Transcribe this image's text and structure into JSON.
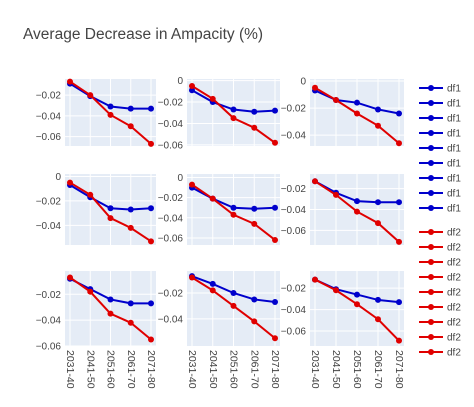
{
  "chart_data": {
    "type": "line",
    "title": "Average Decrease in Ampacity (%)",
    "categories": [
      "2031-40",
      "2041-50",
      "2051-60",
      "2061-70",
      "2071-80"
    ],
    "series_colors": {
      "df1": "#0000cc",
      "df2": "#e00000"
    },
    "plot_bgcolor": "#e5ecf6",
    "grid": true,
    "legend": {
      "placement": "right",
      "entries": [
        "df1",
        "df1",
        "df1",
        "df1",
        "df1",
        "df1",
        "df1",
        "df1",
        "df1",
        "df2",
        "df2",
        "df2",
        "df2",
        "df2",
        "df2",
        "df2",
        "df2",
        "df2"
      ]
    },
    "panels": [
      {
        "yticks": [
          -0.02,
          -0.04,
          -0.06
        ],
        "ytick_labels": [
          "−0.02",
          "−0.04",
          "−0.06"
        ],
        "ylim": [
          -0.069,
          -0.0045
        ],
        "series": [
          {
            "name": "df1",
            "values": [
              -0.009,
              -0.021,
              -0.031,
              -0.033,
              -0.033
            ]
          },
          {
            "name": "df2",
            "values": [
              -0.007,
              -0.02,
              -0.039,
              -0.05,
              -0.067
            ]
          }
        ]
      },
      {
        "yticks": [
          0,
          -0.02,
          -0.04,
          -0.06
        ],
        "ytick_labels": [
          "0",
          "−0.02",
          "−0.04",
          "−0.06"
        ],
        "ylim": [
          -0.061,
          0.0015
        ],
        "series": [
          {
            "name": "df1",
            "values": [
              -0.009,
              -0.02,
              -0.027,
              -0.029,
              -0.028
            ]
          },
          {
            "name": "df2",
            "values": [
              -0.005,
              -0.017,
              -0.035,
              -0.044,
              -0.058
            ]
          }
        ]
      },
      {
        "yticks": [
          0,
          -0.02,
          -0.04
        ],
        "ytick_labels": [
          "0",
          "−0.02",
          "−0.04"
        ],
        "ylim": [
          -0.048,
          0.0015
        ],
        "series": [
          {
            "name": "df1",
            "values": [
              -0.007,
              -0.014,
              -0.016,
              -0.021,
              -0.024
            ]
          },
          {
            "name": "df2",
            "values": [
              -0.005,
              -0.014,
              -0.024,
              -0.033,
              -0.046
            ]
          }
        ]
      },
      {
        "yticks": [
          0,
          -0.02,
          -0.04
        ],
        "ytick_labels": [
          "0",
          "−0.02",
          "−0.04"
        ],
        "ylim": [
          -0.056,
          0.002
        ],
        "series": [
          {
            "name": "df1",
            "values": [
              -0.007,
              -0.017,
              -0.026,
              -0.027,
              -0.026
            ]
          },
          {
            "name": "df2",
            "values": [
              -0.005,
              -0.015,
              -0.034,
              -0.042,
              -0.053
            ]
          }
        ]
      },
      {
        "yticks": [
          0,
          -0.02,
          -0.04,
          -0.06
        ],
        "ytick_labels": [
          "0",
          "−0.02",
          "−0.04",
          "−0.06"
        ],
        "ylim": [
          -0.067,
          0.0035
        ],
        "series": [
          {
            "name": "df1",
            "values": [
              -0.01,
              -0.021,
              -0.03,
              -0.031,
              -0.03
            ]
          },
          {
            "name": "df2",
            "values": [
              -0.007,
              -0.021,
              -0.037,
              -0.046,
              -0.062
            ]
          }
        ]
      },
      {
        "yticks": [
          -0.02,
          -0.04,
          -0.06
        ],
        "ytick_labels": [
          "−0.02",
          "−0.04",
          "−0.06"
        ],
        "ylim": [
          -0.074,
          -0.006
        ],
        "series": [
          {
            "name": "df1",
            "values": [
              -0.013,
              -0.024,
              -0.032,
              -0.033,
              -0.033
            ]
          },
          {
            "name": "df2",
            "values": [
              -0.013,
              -0.026,
              -0.042,
              -0.053,
              -0.071
            ]
          }
        ]
      },
      {
        "yticks": [
          -0.02,
          -0.04,
          -0.06
        ],
        "ytick_labels": [
          "−0.02",
          "−0.04",
          "−0.06"
        ],
        "ylim": [
          -0.06,
          -0.002
        ],
        "series": [
          {
            "name": "df1",
            "values": [
              -0.008,
              -0.016,
              -0.024,
              -0.027,
              -0.027
            ]
          },
          {
            "name": "df2",
            "values": [
              -0.007,
              -0.018,
              -0.035,
              -0.042,
              -0.055
            ]
          }
        ]
      },
      {
        "yticks": [
          -0.02,
          -0.04
        ],
        "ytick_labels": [
          "−0.02",
          "−0.04"
        ],
        "ylim": [
          -0.061,
          -0.003
        ],
        "series": [
          {
            "name": "df1",
            "values": [
              -0.007,
              -0.013,
              -0.02,
              -0.025,
              -0.027
            ]
          },
          {
            "name": "df2",
            "values": [
              -0.008,
              -0.018,
              -0.03,
              -0.042,
              -0.055
            ]
          }
        ]
      },
      {
        "yticks": [
          -0.02,
          -0.04,
          -0.06
        ],
        "ytick_labels": [
          "−0.02",
          "−0.04",
          "−0.06"
        ],
        "ylim": [
          -0.074,
          -0.004
        ],
        "series": [
          {
            "name": "df1",
            "values": [
              -0.012,
              -0.021,
              -0.026,
              -0.031,
              -0.033
            ]
          },
          {
            "name": "df2",
            "values": [
              -0.012,
              -0.022,
              -0.035,
              -0.049,
              -0.069
            ]
          }
        ]
      }
    ]
  }
}
